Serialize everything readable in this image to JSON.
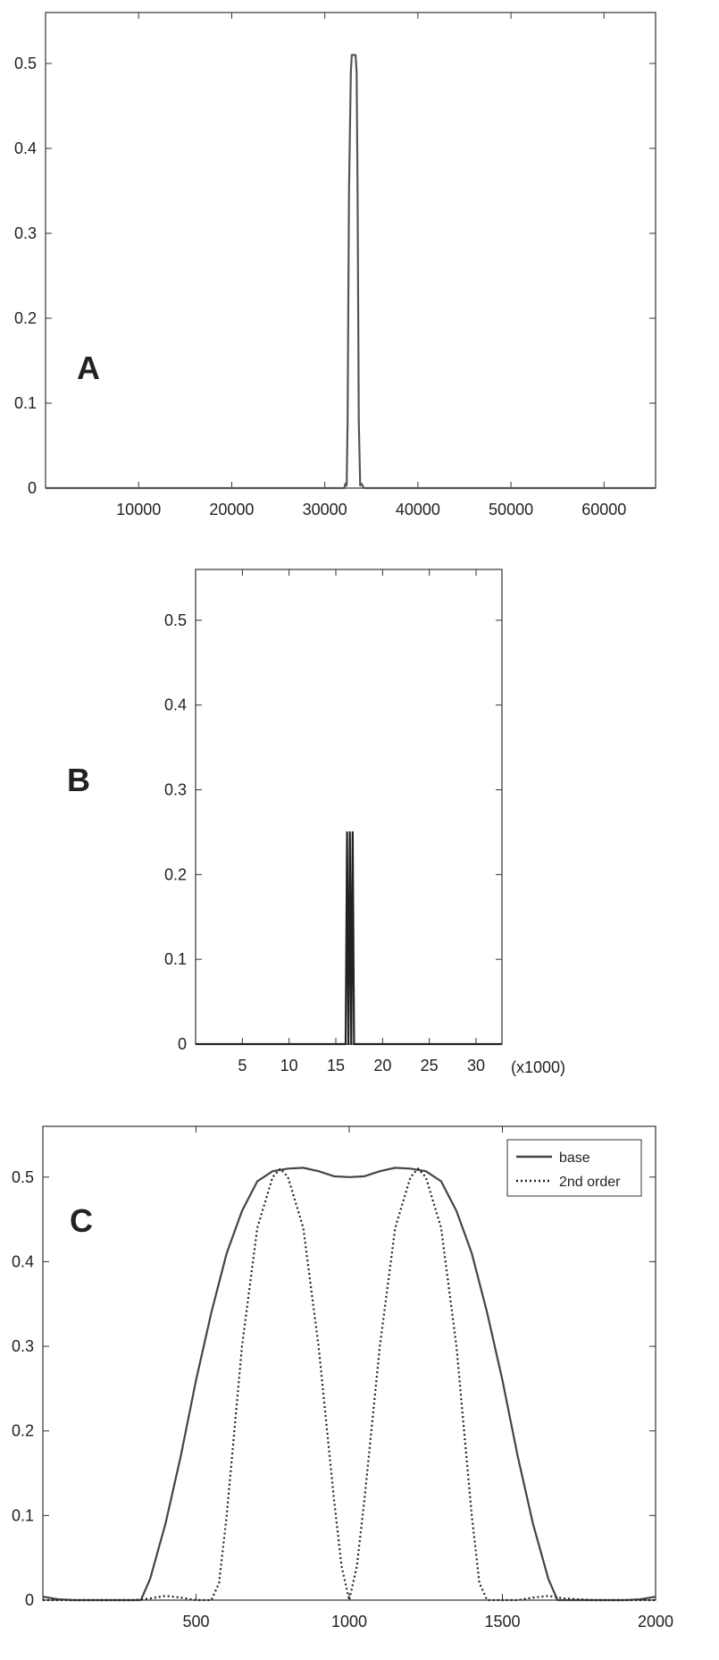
{
  "chart_data": [
    {
      "type": "line",
      "panel_label": "A",
      "xlim": [
        0,
        65536
      ],
      "ylim": [
        0,
        0.56
      ],
      "xticks": [
        10000,
        20000,
        30000,
        40000,
        50000,
        60000
      ],
      "xtick_labels": [
        "10000",
        "20000",
        "30000",
        "40000",
        "50000",
        "60000"
      ],
      "yticks": [
        0,
        0.1,
        0.2,
        0.3,
        0.4,
        0.5
      ],
      "ytick_labels": [
        "0",
        "0.1",
        "0.2",
        "0.3",
        "0.4",
        "0.5"
      ],
      "grid": false,
      "series": [
        {
          "color": "#555555",
          "x": [
            0,
            32100,
            32200,
            32350,
            32450,
            32600,
            32800,
            32900,
            33000,
            33100,
            33200,
            33300,
            33420,
            33520,
            33650,
            33800,
            33950,
            34200,
            34400,
            65536
          ],
          "y": [
            0,
            0,
            0.005,
            0.003,
            0.08,
            0.35,
            0.49,
            0.51,
            0.51,
            0.51,
            0.51,
            0.51,
            0.49,
            0.35,
            0.08,
            0.003,
            0.005,
            0,
            0,
            0
          ]
        }
      ]
    },
    {
      "type": "line",
      "panel_label": "B",
      "xlim": [
        0,
        32768
      ],
      "ylim": [
        0,
        0.56
      ],
      "xticks": [
        5000,
        10000,
        15000,
        20000,
        25000,
        30000
      ],
      "xtick_labels": [
        "5",
        "10",
        "15",
        "20",
        "25",
        "30"
      ],
      "x_suffix": "(x1000)",
      "yticks": [
        0,
        0.1,
        0.2,
        0.3,
        0.4,
        0.5
      ],
      "ytick_labels": [
        "0",
        "0.1",
        "0.2",
        "0.3",
        "0.4",
        "0.5"
      ],
      "grid": false,
      "series": [
        {
          "color": "#222222",
          "x": [
            0,
            16050,
            16200,
            16350,
            16500,
            16650,
            16800,
            16950,
            17100,
            32768
          ],
          "y": [
            0,
            0,
            0.25,
            0.0,
            0.25,
            0.0,
            0.25,
            0.0,
            0,
            0
          ]
        }
      ]
    },
    {
      "type": "line",
      "panel_label": "C",
      "xlim": [
        0,
        2000
      ],
      "ylim": [
        0,
        0.56
      ],
      "xticks": [
        500,
        1000,
        1500,
        2000
      ],
      "xtick_labels": [
        "500",
        "1000",
        "1500",
        "2000"
      ],
      "yticks": [
        0,
        0.1,
        0.2,
        0.3,
        0.4,
        0.5
      ],
      "ytick_labels": [
        "0",
        "0.1",
        "0.2",
        "0.3",
        "0.4",
        "0.5"
      ],
      "grid": false,
      "legend_position": "top-right",
      "series": [
        {
          "name": "base",
          "style": "solid",
          "color": "#444444",
          "x": [
            0,
            50,
            100,
            150,
            200,
            250,
            300,
            320,
            350,
            400,
            450,
            500,
            550,
            600,
            650,
            700,
            750,
            800,
            850,
            900,
            950,
            1000,
            1050,
            1100,
            1150,
            1200,
            1250,
            1300,
            1350,
            1400,
            1450,
            1500,
            1550,
            1600,
            1650,
            1680,
            1700,
            1750,
            1800,
            1850,
            1900,
            1950,
            2000
          ],
          "y": [
            0.004,
            0.001,
            0,
            0,
            0,
            0,
            0,
            0,
            0.025,
            0.09,
            0.17,
            0.26,
            0.34,
            0.41,
            0.46,
            0.495,
            0.507,
            0.51,
            0.511,
            0.507,
            0.501,
            0.5,
            0.501,
            0.507,
            0.511,
            0.51,
            0.507,
            0.495,
            0.46,
            0.41,
            0.34,
            0.26,
            0.17,
            0.09,
            0.025,
            0,
            0,
            0,
            0,
            0,
            0,
            0.001,
            0.004
          ]
        },
        {
          "name": "2nd order",
          "style": "dotted",
          "color": "#222222",
          "x": [
            0,
            200,
            300,
            350,
            400,
            450,
            500,
            550,
            575,
            600,
            650,
            700,
            750,
            775,
            800,
            850,
            900,
            950,
            975,
            1000,
            1025,
            1050,
            1100,
            1150,
            1200,
            1225,
            1250,
            1300,
            1350,
            1400,
            1425,
            1450,
            1500,
            1550,
            1600,
            1650,
            1700,
            1800,
            2000
          ],
          "y": [
            0,
            0,
            0,
            0.002,
            0.005,
            0.003,
            0,
            0,
            0.02,
            0.1,
            0.3,
            0.44,
            0.5,
            0.51,
            0.5,
            0.44,
            0.3,
            0.12,
            0.04,
            0,
            0.04,
            0.12,
            0.3,
            0.44,
            0.5,
            0.51,
            0.5,
            0.44,
            0.3,
            0.1,
            0.02,
            0,
            0,
            0,
            0.003,
            0.005,
            0.002,
            0,
            0
          ]
        }
      ],
      "legend": [
        "base",
        "2nd order"
      ]
    }
  ]
}
